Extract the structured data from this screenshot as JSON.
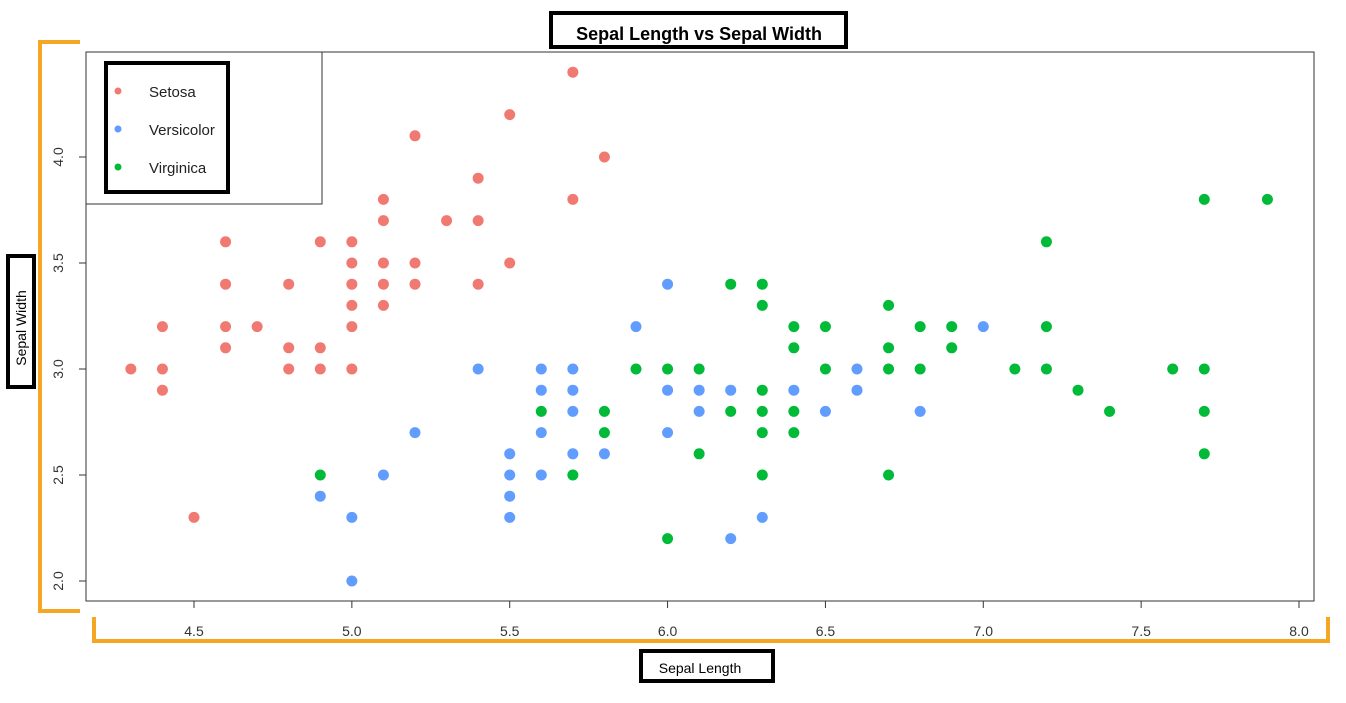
{
  "chart_data": {
    "type": "scatter",
    "title": "Sepal Length vs Sepal Width",
    "xlabel": "Sepal Length",
    "ylabel": "Sepal Width",
    "xlim": [
      4.3,
      7.9
    ],
    "ylim": [
      2.0,
      4.4
    ],
    "xticks": [
      "4.5",
      "5.0",
      "5.5",
      "6.0",
      "6.5",
      "7.0",
      "7.5",
      "8.0"
    ],
    "yticks": [
      "2.0",
      "2.5",
      "3.0",
      "3.5",
      "4.0"
    ],
    "legend_position": "top-left",
    "series": [
      {
        "name": "Setosa",
        "color": "#F07A72",
        "points": [
          [
            4.3,
            3.0
          ],
          [
            4.4,
            3.2
          ],
          [
            4.4,
            3.0
          ],
          [
            4.4,
            2.9
          ],
          [
            4.5,
            2.3
          ],
          [
            4.6,
            3.6
          ],
          [
            4.6,
            3.4
          ],
          [
            4.6,
            3.2
          ],
          [
            4.6,
            3.1
          ],
          [
            4.7,
            3.2
          ],
          [
            4.8,
            3.4
          ],
          [
            4.8,
            3.1
          ],
          [
            4.8,
            3.0
          ],
          [
            4.9,
            3.6
          ],
          [
            4.9,
            3.1
          ],
          [
            4.9,
            3.0
          ],
          [
            5.0,
            3.6
          ],
          [
            5.0,
            3.5
          ],
          [
            5.0,
            3.4
          ],
          [
            5.0,
            3.3
          ],
          [
            5.0,
            3.2
          ],
          [
            5.0,
            3.0
          ],
          [
            5.1,
            3.8
          ],
          [
            5.1,
            3.7
          ],
          [
            5.1,
            3.5
          ],
          [
            5.1,
            3.4
          ],
          [
            5.1,
            3.3
          ],
          [
            5.2,
            4.1
          ],
          [
            5.2,
            3.5
          ],
          [
            5.2,
            3.4
          ],
          [
            5.3,
            3.7
          ],
          [
            5.4,
            3.9
          ],
          [
            5.4,
            3.7
          ],
          [
            5.4,
            3.4
          ],
          [
            5.5,
            4.2
          ],
          [
            5.5,
            3.5
          ],
          [
            5.7,
            4.4
          ],
          [
            5.7,
            3.8
          ],
          [
            5.8,
            4.0
          ]
        ]
      },
      {
        "name": "Versicolor",
        "color": "#619CFF",
        "points": [
          [
            4.9,
            2.4
          ],
          [
            5.0,
            2.3
          ],
          [
            5.0,
            2.0
          ],
          [
            5.1,
            2.5
          ],
          [
            5.2,
            2.7
          ],
          [
            5.4,
            3.0
          ],
          [
            5.5,
            2.6
          ],
          [
            5.5,
            2.5
          ],
          [
            5.5,
            2.4
          ],
          [
            5.5,
            2.3
          ],
          [
            5.6,
            3.0
          ],
          [
            5.6,
            2.9
          ],
          [
            5.6,
            2.7
          ],
          [
            5.6,
            2.5
          ],
          [
            5.7,
            3.0
          ],
          [
            5.7,
            2.9
          ],
          [
            5.7,
            2.8
          ],
          [
            5.7,
            2.6
          ],
          [
            5.8,
            2.6
          ],
          [
            5.9,
            3.2
          ],
          [
            6.0,
            3.4
          ],
          [
            6.0,
            2.9
          ],
          [
            6.0,
            2.7
          ],
          [
            6.1,
            2.9
          ],
          [
            6.1,
            2.8
          ],
          [
            6.2,
            2.9
          ],
          [
            6.2,
            2.2
          ],
          [
            6.3,
            2.3
          ],
          [
            6.4,
            2.9
          ],
          [
            6.5,
            2.8
          ],
          [
            6.6,
            3.0
          ],
          [
            6.6,
            2.9
          ],
          [
            6.8,
            2.8
          ],
          [
            7.0,
            3.2
          ]
        ]
      },
      {
        "name": "Virginica",
        "color": "#00BA38",
        "points": [
          [
            4.9,
            2.5
          ],
          [
            5.6,
            2.8
          ],
          [
            5.7,
            2.5
          ],
          [
            5.8,
            2.8
          ],
          [
            5.8,
            2.7
          ],
          [
            5.9,
            3.0
          ],
          [
            6.0,
            3.0
          ],
          [
            6.0,
            2.2
          ],
          [
            6.1,
            3.0
          ],
          [
            6.1,
            2.6
          ],
          [
            6.2,
            3.4
          ],
          [
            6.2,
            2.8
          ],
          [
            6.3,
            3.4
          ],
          [
            6.3,
            3.3
          ],
          [
            6.3,
            2.9
          ],
          [
            6.3,
            2.8
          ],
          [
            6.3,
            2.7
          ],
          [
            6.3,
            2.5
          ],
          [
            6.4,
            3.2
          ],
          [
            6.4,
            3.1
          ],
          [
            6.4,
            2.8
          ],
          [
            6.4,
            2.7
          ],
          [
            6.5,
            3.2
          ],
          [
            6.5,
            3.0
          ],
          [
            6.7,
            3.3
          ],
          [
            6.7,
            3.1
          ],
          [
            6.7,
            3.0
          ],
          [
            6.7,
            2.5
          ],
          [
            6.8,
            3.2
          ],
          [
            6.8,
            3.0
          ],
          [
            6.9,
            3.2
          ],
          [
            6.9,
            3.1
          ],
          [
            7.1,
            3.0
          ],
          [
            7.2,
            3.6
          ],
          [
            7.2,
            3.2
          ],
          [
            7.2,
            3.0
          ],
          [
            7.3,
            2.9
          ],
          [
            7.4,
            2.8
          ],
          [
            7.6,
            3.0
          ],
          [
            7.7,
            3.8
          ],
          [
            7.7,
            3.0
          ],
          [
            7.7,
            2.8
          ],
          [
            7.7,
            2.6
          ],
          [
            7.9,
            3.8
          ]
        ]
      }
    ]
  },
  "colors": {
    "axis_bracket": "#F5A623",
    "callout_box": "#000000"
  }
}
